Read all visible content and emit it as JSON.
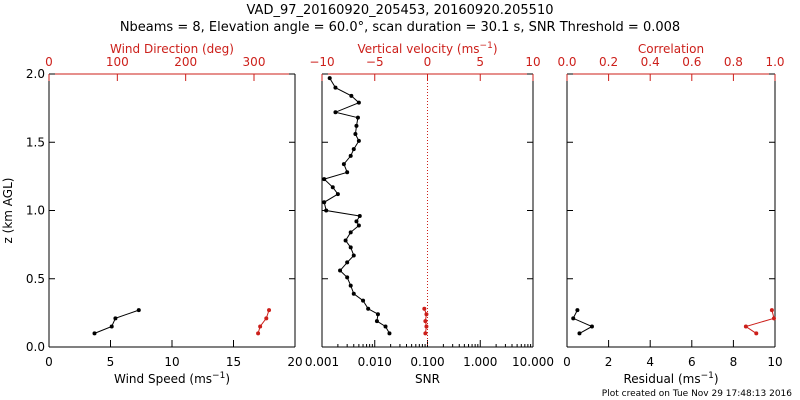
{
  "title_line1": "VAD_97_20160920_205453, 20160920.205510",
  "title_line2": "Nbeams = 8, Elevation angle = 60.0°, scan duration = 30.1 s, SNR Threshold = 0.008",
  "footer": "Plot created on Tue Nov 29 17:48:13 2016",
  "colors": {
    "black": "#000000",
    "red": "#cc1f1a"
  },
  "chart_data": [
    {
      "type": "line",
      "name": "wind",
      "ylabel": "z (km AGL)",
      "ylim": [
        0,
        2
      ],
      "yticks": [
        "0.0",
        "0.5",
        "1.0",
        "1.5",
        "2.0"
      ],
      "ytick_values": [
        0,
        0.5,
        1.0,
        1.5,
        2.0
      ],
      "bottom_axis": {
        "label": "Wind Speed (ms⁻¹)",
        "lim": [
          0,
          20
        ],
        "ticks": [
          "0",
          "5",
          "10",
          "15",
          "20"
        ],
        "tick_values": [
          0,
          5,
          10,
          15,
          20
        ]
      },
      "top_axis": {
        "label": "Wind Direction (deg)",
        "lim": [
          0,
          360
        ],
        "ticks": [
          "0",
          "100",
          "200",
          "300"
        ],
        "tick_values": [
          0,
          100,
          200,
          300
        ]
      },
      "series": [
        {
          "axis": "bottom",
          "color": "#000000",
          "x": [
            3.7,
            5.1,
            5.4,
            7.3
          ],
          "y": [
            0.1,
            0.15,
            0.21,
            0.27
          ]
        },
        {
          "axis": "top",
          "color": "#cc1f1a",
          "x": [
            306,
            309,
            318,
            322
          ],
          "y": [
            0.1,
            0.15,
            0.21,
            0.27
          ]
        }
      ]
    },
    {
      "type": "line",
      "name": "snr",
      "ylim": [
        0,
        2
      ],
      "bottom_axis": {
        "label": "SNR",
        "scale": "log",
        "lim": [
          0.001,
          10
        ],
        "ticks": [
          "0.001",
          "0.010",
          "0.100",
          "1.000",
          "10.000"
        ],
        "tick_values": [
          0.001,
          0.01,
          0.1,
          1,
          10
        ]
      },
      "top_axis": {
        "label": "Vertical velocity (ms⁻¹)",
        "lim": [
          -10,
          10
        ],
        "ticks": [
          "−10",
          "−5",
          "0",
          "5",
          "10"
        ],
        "tick_values": [
          -10,
          -5,
          0,
          5,
          10
        ]
      },
      "reference_line": {
        "axis": "top",
        "value": 0,
        "style": "dotted",
        "color": "#cc1f1a"
      },
      "series": [
        {
          "axis": "bottom",
          "color": "#000000",
          "x": [
            0.019,
            0.016,
            0.011,
            0.0115,
            0.0075,
            0.006,
            0.004,
            0.0035,
            0.003,
            0.0022,
            0.003,
            0.004,
            0.0035,
            0.0028,
            0.0035,
            0.005,
            0.0045,
            0.0052,
            0.0012,
            0.0011,
            0.002,
            0.0016,
            0.0011,
            0.003,
            0.0026,
            0.0035,
            0.004,
            0.005,
            0.0043,
            0.0045,
            0.0048,
            0.0018,
            0.005,
            0.0036,
            0.0018,
            0.0014
          ],
          "y": [
            0.1,
            0.15,
            0.19,
            0.24,
            0.28,
            0.34,
            0.39,
            0.45,
            0.51,
            0.56,
            0.62,
            0.67,
            0.73,
            0.78,
            0.84,
            0.89,
            0.92,
            0.96,
            1.0,
            1.06,
            1.12,
            1.17,
            1.23,
            1.28,
            1.34,
            1.4,
            1.45,
            1.51,
            1.56,
            1.62,
            1.68,
            1.72,
            1.79,
            1.84,
            1.9,
            1.97
          ]
        },
        {
          "axis": "top",
          "color": "#cc1f1a",
          "x": [
            -0.2,
            -0.1,
            -0.2,
            -0.1,
            -0.3
          ],
          "y": [
            0.1,
            0.15,
            0.19,
            0.24,
            0.28
          ]
        }
      ]
    },
    {
      "type": "line",
      "name": "residual",
      "ylim": [
        0,
        2
      ],
      "bottom_axis": {
        "label": "Residual (ms⁻¹)",
        "lim": [
          0,
          10
        ],
        "ticks": [
          "0",
          "2",
          "4",
          "6",
          "8",
          "10"
        ],
        "tick_values": [
          0,
          2,
          4,
          6,
          8,
          10
        ]
      },
      "top_axis": {
        "label": "Correlation",
        "lim": [
          0,
          1
        ],
        "ticks": [
          "0.0",
          "0.2",
          "0.4",
          "0.6",
          "0.8",
          "1.0"
        ],
        "tick_values": [
          0,
          0.2,
          0.4,
          0.6,
          0.8,
          1.0
        ]
      },
      "series": [
        {
          "axis": "bottom",
          "color": "#000000",
          "x": [
            0.6,
            1.2,
            0.3,
            0.5
          ],
          "y": [
            0.1,
            0.15,
            0.21,
            0.27
          ]
        },
        {
          "axis": "top",
          "color": "#cc1f1a",
          "x": [
            0.91,
            0.86,
            0.995,
            0.985
          ],
          "y": [
            0.1,
            0.15,
            0.21,
            0.27
          ]
        }
      ]
    }
  ]
}
